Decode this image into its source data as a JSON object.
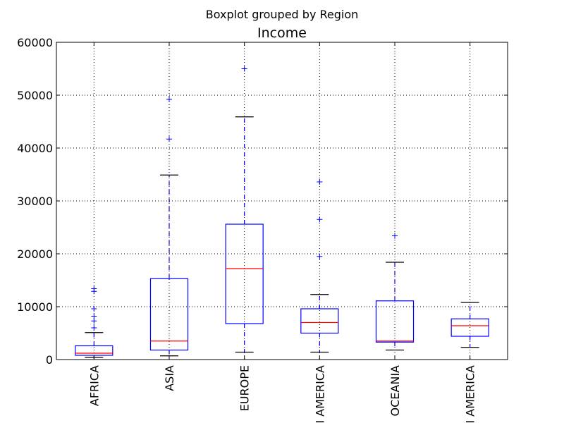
{
  "suptitle": "Boxplot grouped by Region",
  "chart_data": {
    "type": "box",
    "title": "Income",
    "xlabel": "",
    "ylabel": "",
    "ylim": [
      0,
      60000
    ],
    "yticks": [
      0,
      10000,
      20000,
      30000,
      40000,
      50000,
      60000
    ],
    "grid": true,
    "tick_labels_visible": [
      "AFRICA",
      "ASIA",
      "EUROPE",
      "I AMERICA",
      "OCEANIA",
      "I AMERICA"
    ],
    "boxes": [
      {
        "category": "AFRICA",
        "whisker_low": 400,
        "q1": 800,
        "median": 1200,
        "q3": 2600,
        "whisker_high": 5100,
        "fliers": [
          6000,
          7300,
          8200,
          9600,
          12900,
          13400
        ]
      },
      {
        "category": "ASIA",
        "whisker_low": 700,
        "q1": 1800,
        "median": 3500,
        "q3": 15300,
        "whisker_high": 34900,
        "fliers": [
          41700,
          49200
        ]
      },
      {
        "category": "EUROPE",
        "whisker_low": 1400,
        "q1": 6800,
        "median": 17200,
        "q3": 25600,
        "whisker_high": 45900,
        "fliers": [
          55000
        ]
      },
      {
        "category": "I AMERICA",
        "whisker_low": 1400,
        "q1": 5000,
        "median": 7000,
        "q3": 9600,
        "whisker_high": 12300,
        "fliers": [
          19500,
          26500,
          33600
        ]
      },
      {
        "category": "OCEANIA",
        "whisker_low": 1800,
        "q1": 3300,
        "median": 3500,
        "q3": 11100,
        "whisker_high": 18400,
        "fliers": [
          23400
        ]
      },
      {
        "category": "I AMERICA",
        "whisker_low": 2300,
        "q1": 4400,
        "median": 6400,
        "q3": 7700,
        "whisker_high": 10800,
        "fliers": []
      }
    ],
    "colors": {
      "box": "#0000ff",
      "median": "#ff0000",
      "cap": "#000000"
    }
  }
}
